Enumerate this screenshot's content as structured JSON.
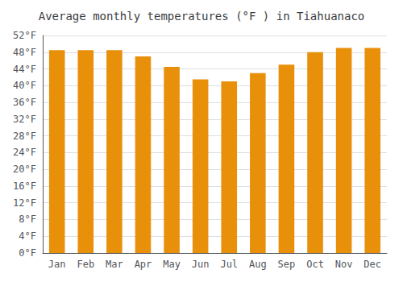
{
  "chart_data": {
    "type": "bar",
    "title": "Average monthly temperatures (°F ) in Tiahuanaco",
    "categories": [
      "Jan",
      "Feb",
      "Mar",
      "Apr",
      "May",
      "Jun",
      "Jul",
      "Aug",
      "Sep",
      "Oct",
      "Nov",
      "Dec"
    ],
    "values": [
      48.5,
      48.5,
      48.5,
      47.0,
      44.5,
      41.5,
      41.0,
      43.0,
      45.0,
      48.0,
      49.0,
      49.0
    ],
    "color": "#E8900A",
    "ylim": [
      0,
      52
    ],
    "yticks": [
      {
        "value": 0,
        "label": "0°F"
      },
      {
        "value": 4,
        "label": "4°F"
      },
      {
        "value": 8,
        "label": "8°F"
      },
      {
        "value": 12,
        "label": "12°F"
      },
      {
        "value": 16,
        "label": "16°F"
      },
      {
        "value": 20,
        "label": "20°F"
      },
      {
        "value": 24,
        "label": "24°F"
      },
      {
        "value": 28,
        "label": "28°F"
      },
      {
        "value": 32,
        "label": "32°F"
      },
      {
        "value": 36,
        "label": "36°F"
      },
      {
        "value": 40,
        "label": "40°F"
      },
      {
        "value": 44,
        "label": "44°F"
      },
      {
        "value": 48,
        "label": "48°F"
      },
      {
        "value": 52,
        "label": "52°F"
      }
    ],
    "grid": true
  }
}
